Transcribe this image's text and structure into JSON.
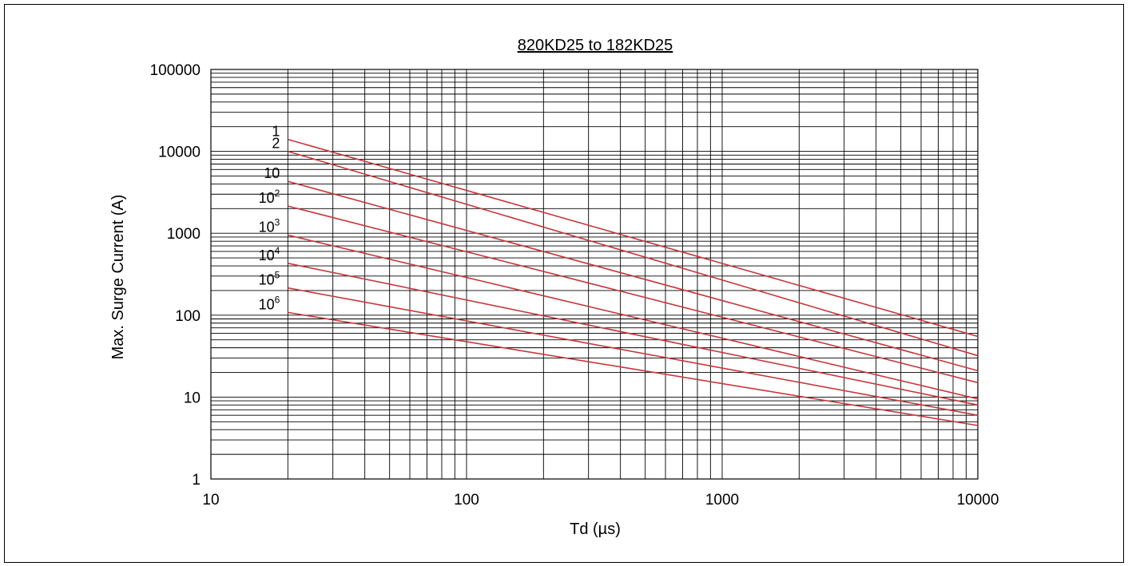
{
  "chart_data": {
    "type": "line",
    "title": "820KD25 to 182KD25",
    "xlabel": "Td (µs)",
    "ylabel": "Max. Surge Current (A)",
    "x_scale": "log",
    "y_scale": "log",
    "xlim": [
      10,
      10000
    ],
    "ylim": [
      1,
      100000
    ],
    "x_tick_labels": [
      "10",
      "100",
      "1000",
      "10000"
    ],
    "y_tick_labels": [
      "1",
      "10",
      "100",
      "1000",
      "10000",
      "100000"
    ],
    "grid": true,
    "line_color": "#c8373d",
    "series": [
      {
        "name": "1",
        "label_base": "1",
        "label_exp": "",
        "x": [
          20,
          10000
        ],
        "y": [
          14000,
          55
        ]
      },
      {
        "name": "2",
        "label_base": "2",
        "label_exp": "",
        "x": [
          20,
          10000
        ],
        "y": [
          10000,
          32
        ]
      },
      {
        "name": "10",
        "label_base": "10",
        "label_exp": "",
        "x": [
          20,
          10000
        ],
        "y": [
          4300,
          21
        ]
      },
      {
        "name": "10^2",
        "label_base": "10",
        "label_exp": "2",
        "x": [
          20,
          10000
        ],
        "y": [
          2150,
          15
        ]
      },
      {
        "name": "10^3",
        "label_base": "10",
        "label_exp": "3",
        "x": [
          20,
          10000
        ],
        "y": [
          950,
          9.5
        ]
      },
      {
        "name": "10^4",
        "label_base": "10",
        "label_exp": "4",
        "x": [
          20,
          10000
        ],
        "y": [
          430,
          8
        ]
      },
      {
        "name": "10^5",
        "label_base": "10",
        "label_exp": "5",
        "x": [
          20,
          10000
        ],
        "y": [
          215,
          6
        ]
      },
      {
        "name": "10^6",
        "label_base": "10",
        "label_exp": "6",
        "x": [
          20,
          10000
        ],
        "y": [
          108,
          4.5
        ]
      }
    ]
  }
}
